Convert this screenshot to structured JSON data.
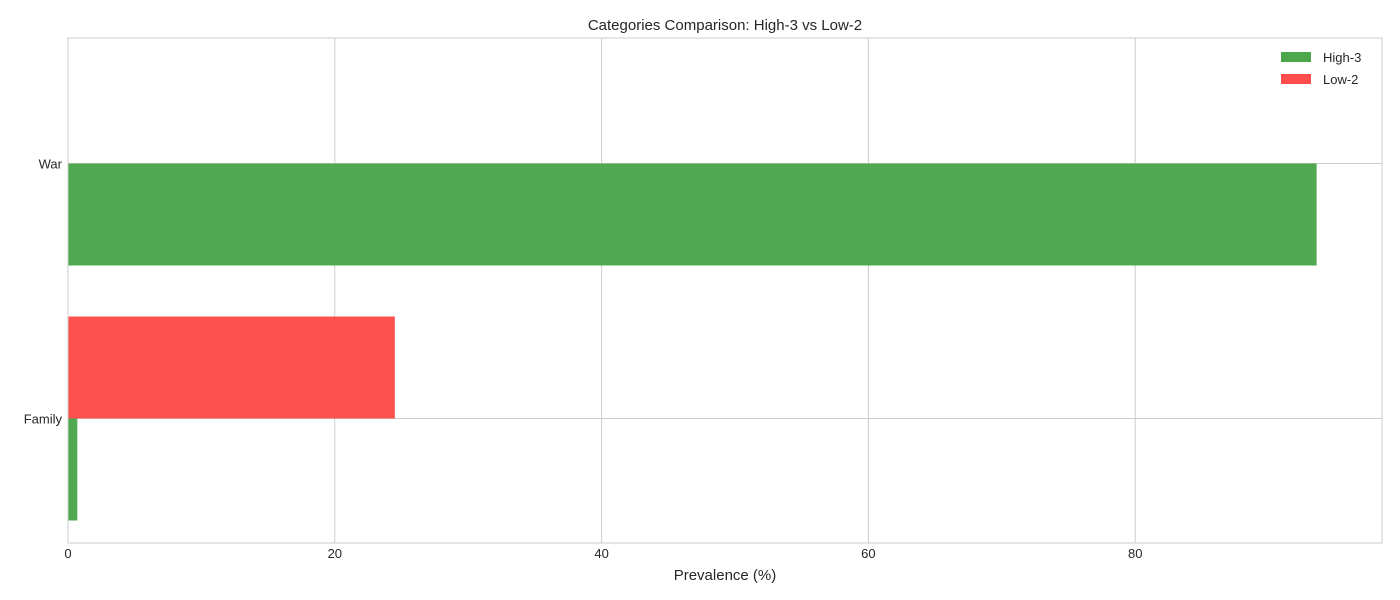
{
  "chart_data": {
    "type": "bar",
    "orientation": "horizontal",
    "title": "Categories Comparison: High-3 vs Low-2",
    "xlabel": "Prevalence (%)",
    "ylabel": "",
    "categories": [
      "War",
      "Family"
    ],
    "series": [
      {
        "name": "High-3",
        "color": "#4ca64c",
        "values": [
          93.6,
          0.7
        ]
      },
      {
        "name": "Low-2",
        "color": "#ff4c4c",
        "values": [
          0,
          24.5
        ]
      }
    ],
    "xlim": [
      0,
      98.5
    ],
    "xticks": [
      0,
      20,
      40,
      60,
      80
    ],
    "grid": true,
    "legend_position": "top-right"
  }
}
